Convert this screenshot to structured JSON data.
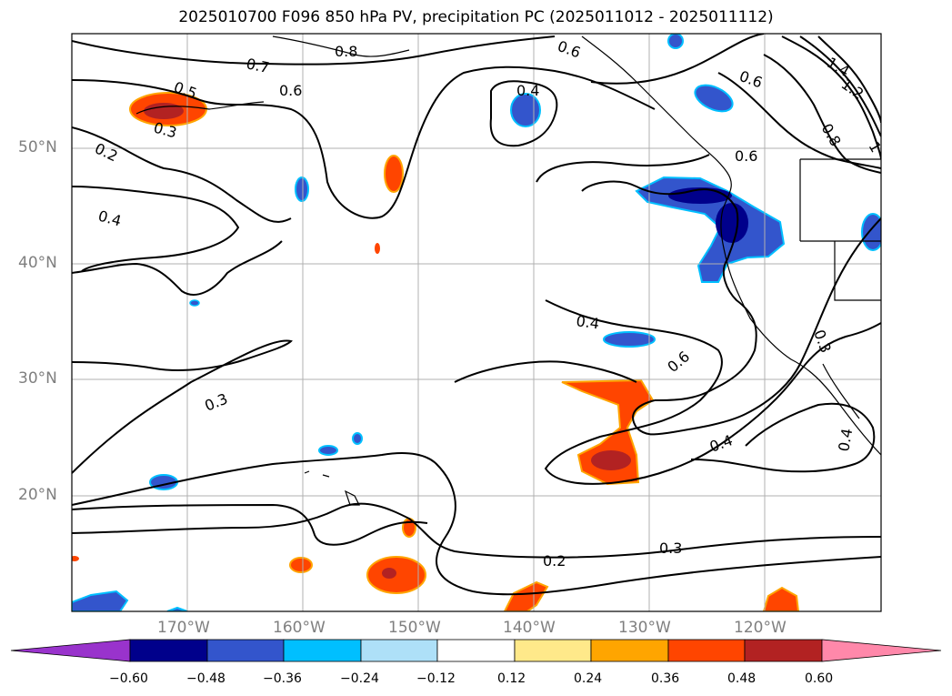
{
  "title": "2025010700 F096 850 hPa PV, precipitation PC (2025011012 - 2025011112)",
  "lat_labels": [
    "50°N",
    "40°N",
    "30°N",
    "20°N"
  ],
  "lon_labels": [
    "170°W",
    "160°W",
    "150°W",
    "140°W",
    "130°W",
    "120°W"
  ],
  "contour_labels": [
    "0.7",
    "0.8",
    "0.5",
    "0.6",
    "0.3",
    "0.2",
    "0.4",
    "0.4",
    "0.6",
    "1.4",
    "1.2",
    "0.8",
    "1",
    "0.6",
    "0.6",
    "0.4",
    "0.6",
    "0.3",
    "0.3",
    "0.4",
    "0.4",
    "0.2",
    "0.3"
  ],
  "colorbar": {
    "ticks": [
      "−0.60",
      "−0.48",
      "−0.36",
      "−0.24",
      "−0.12",
      "0.12",
      "0.24",
      "0.36",
      "0.48",
      "0.60"
    ],
    "colors": [
      "#9933cc",
      "#00008b",
      "#3355cc",
      "#00bfff",
      "#aee0f8",
      "#ffffff",
      "#ffe98a",
      "#ffa500",
      "#ff4500",
      "#b22222",
      "#ff88aa"
    ]
  }
}
